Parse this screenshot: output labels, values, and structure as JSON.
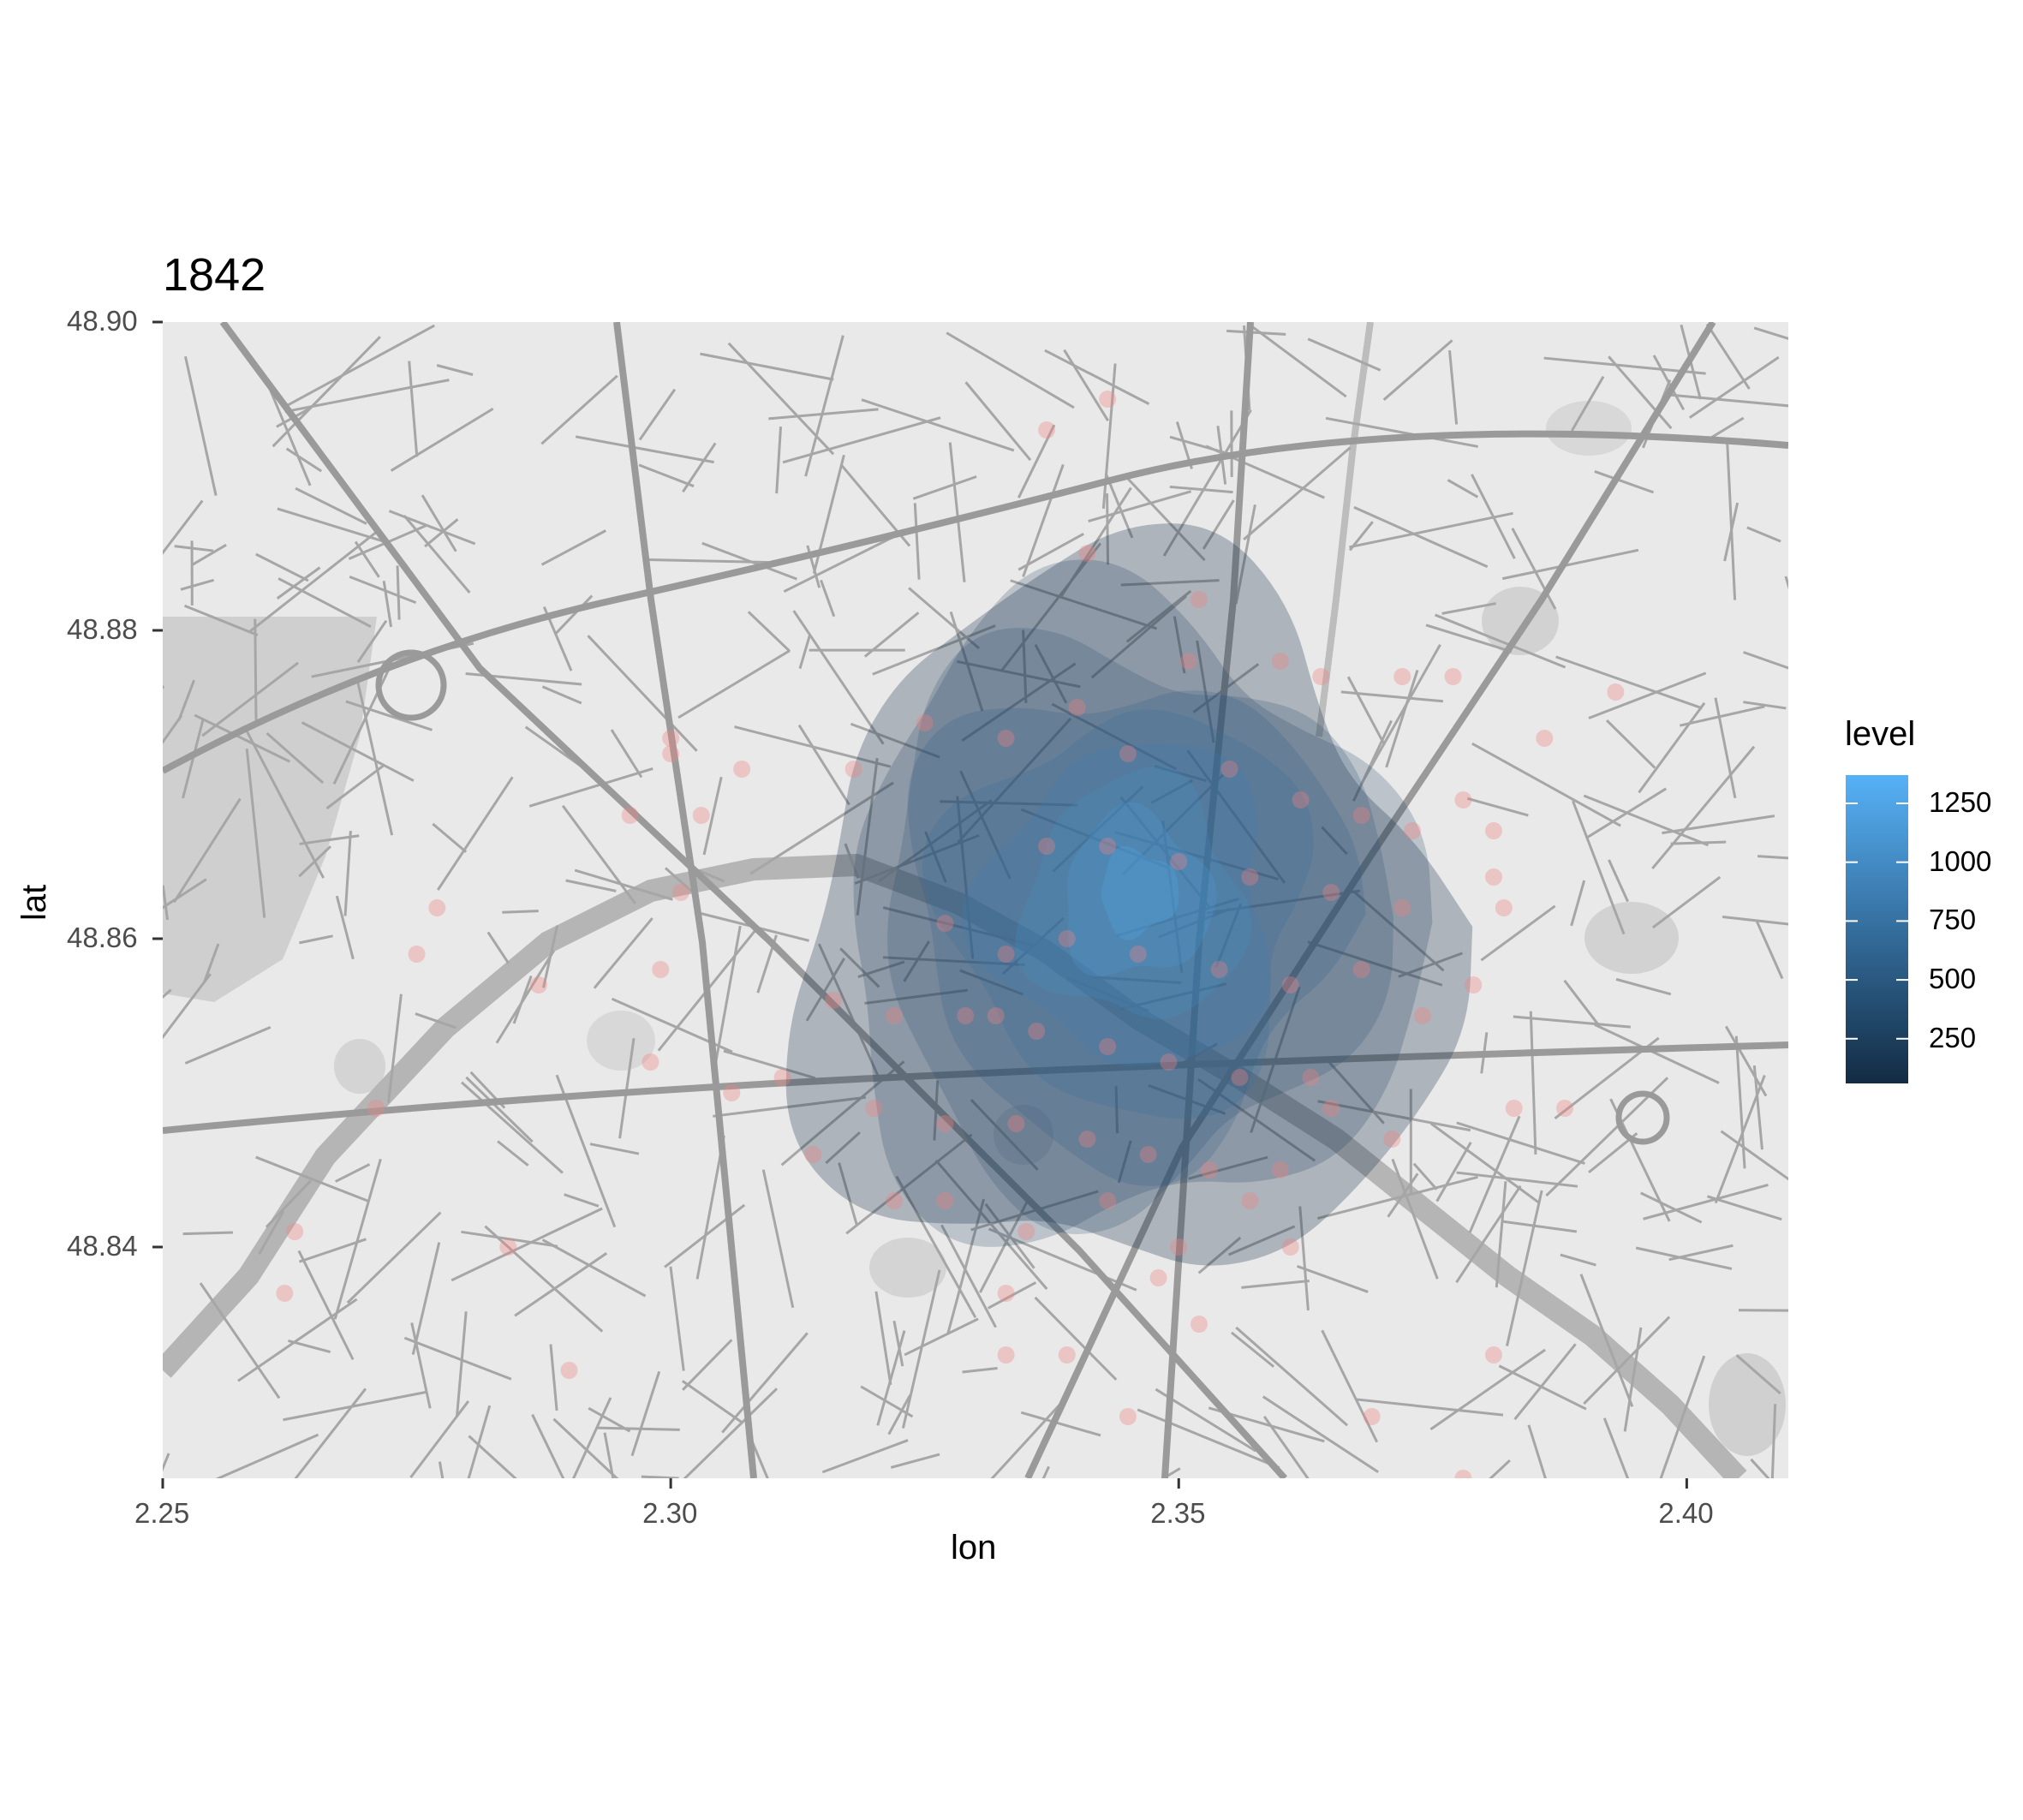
{
  "chart_data": {
    "type": "map-density",
    "title": "1842",
    "xlabel": "lon",
    "ylabel": "lat",
    "xlim": [
      2.25,
      2.41
    ],
    "ylim": [
      48.825,
      48.9
    ],
    "x_ticks": [
      "2.25",
      "2.30",
      "2.35",
      "2.40"
    ],
    "x_tick_values": [
      2.25,
      2.3,
      2.35,
      2.4
    ],
    "y_ticks": [
      "48.84",
      "48.86",
      "48.88",
      "48.90"
    ],
    "y_tick_values": [
      48.84,
      48.86,
      48.88,
      48.9
    ],
    "legend": {
      "title": "level",
      "labels": [
        "250",
        "500",
        "750",
        "1000",
        "1250"
      ],
      "values": [
        250,
        500,
        750,
        1000,
        1250
      ],
      "range": [
        60,
        1370
      ],
      "color_low": "#132B43",
      "color_high": "#56B1F7"
    },
    "density_peak": {
      "lon": 2.346,
      "lat": 48.863
    },
    "point_color": "#f08080",
    "points": [
      [
        2.337,
        48.893
      ],
      [
        2.343,
        48.895
      ],
      [
        2.341,
        48.885
      ],
      [
        2.352,
        48.882
      ],
      [
        2.36,
        48.878
      ],
      [
        2.364,
        48.877
      ],
      [
        2.372,
        48.877
      ],
      [
        2.377,
        48.877
      ],
      [
        2.325,
        48.874
      ],
      [
        2.318,
        48.871
      ],
      [
        2.307,
        48.871
      ],
      [
        2.3,
        48.872
      ],
      [
        2.296,
        48.868
      ],
      [
        2.303,
        48.868
      ],
      [
        2.3,
        48.873
      ],
      [
        2.333,
        48.873
      ],
      [
        2.345,
        48.872
      ],
      [
        2.355,
        48.871
      ],
      [
        2.362,
        48.869
      ],
      [
        2.368,
        48.868
      ],
      [
        2.373,
        48.867
      ],
      [
        2.381,
        48.867
      ],
      [
        2.378,
        48.869
      ],
      [
        2.337,
        48.866
      ],
      [
        2.343,
        48.866
      ],
      [
        2.35,
        48.865
      ],
      [
        2.357,
        48.864
      ],
      [
        2.365,
        48.863
      ],
      [
        2.372,
        48.862
      ],
      [
        2.382,
        48.862
      ],
      [
        2.327,
        48.861
      ],
      [
        2.333,
        48.859
      ],
      [
        2.339,
        48.86
      ],
      [
        2.346,
        48.859
      ],
      [
        2.354,
        48.858
      ],
      [
        2.361,
        48.857
      ],
      [
        2.368,
        48.858
      ],
      [
        2.379,
        48.857
      ],
      [
        2.316,
        48.856
      ],
      [
        2.322,
        48.855
      ],
      [
        2.329,
        48.855
      ],
      [
        2.336,
        48.854
      ],
      [
        2.343,
        48.853
      ],
      [
        2.349,
        48.852
      ],
      [
        2.356,
        48.851
      ],
      [
        2.363,
        48.851
      ],
      [
        2.32,
        48.849
      ],
      [
        2.327,
        48.848
      ],
      [
        2.334,
        48.848
      ],
      [
        2.341,
        48.847
      ],
      [
        2.347,
        48.846
      ],
      [
        2.353,
        48.845
      ],
      [
        2.36,
        48.845
      ],
      [
        2.365,
        48.849
      ],
      [
        2.314,
        48.846
      ],
      [
        2.311,
        48.851
      ],
      [
        2.306,
        48.85
      ],
      [
        2.298,
        48.852
      ],
      [
        2.287,
        48.857
      ],
      [
        2.275,
        48.859
      ],
      [
        2.271,
        48.849
      ],
      [
        2.263,
        48.841
      ],
      [
        2.262,
        48.837
      ],
      [
        2.284,
        48.84
      ],
      [
        2.29,
        48.832
      ],
      [
        2.301,
        48.863
      ],
      [
        2.277,
        48.862
      ],
      [
        2.299,
        48.858
      ],
      [
        2.322,
        48.843
      ],
      [
        2.327,
        48.843
      ],
      [
        2.333,
        48.837
      ],
      [
        2.339,
        48.833
      ],
      [
        2.345,
        48.829
      ],
      [
        2.35,
        48.84
      ],
      [
        2.357,
        48.843
      ],
      [
        2.361,
        48.84
      ],
      [
        2.369,
        48.829
      ],
      [
        2.378,
        48.825
      ],
      [
        2.381,
        48.833
      ],
      [
        2.383,
        48.849
      ],
      [
        2.388,
        48.849
      ],
      [
        2.393,
        48.876
      ],
      [
        2.386,
        48.873
      ],
      [
        2.381,
        48.864
      ],
      [
        2.374,
        48.855
      ],
      [
        2.371,
        48.847
      ],
      [
        2.333,
        48.833
      ],
      [
        2.348,
        48.838
      ],
      [
        2.352,
        48.835
      ],
      [
        2.343,
        48.843
      ],
      [
        2.335,
        48.841
      ],
      [
        2.332,
        48.855
      ],
      [
        2.34,
        48.875
      ],
      [
        2.351,
        48.878
      ]
    ]
  }
}
